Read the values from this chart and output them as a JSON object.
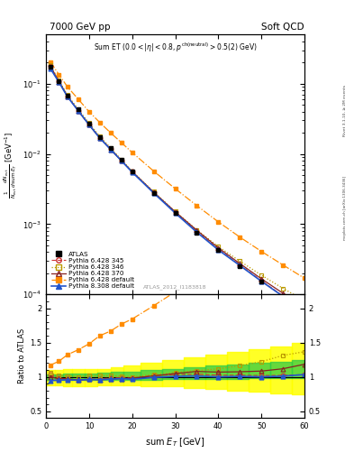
{
  "title_left": "7000 GeV pp",
  "title_right": "Soft QCD",
  "watermark": "ATLAS_2012_I1183818",
  "right_label": "mcplots.cern.ch [arXiv:1306.3436]",
  "right_label2": "Rivet 3.1.10, ≥ 2M events",
  "atlas_x": [
    1,
    3,
    5,
    7.5,
    10,
    12.5,
    15,
    17.5,
    20,
    25,
    30,
    35,
    40,
    45,
    50,
    55,
    60
  ],
  "atlas_y": [
    0.175,
    0.11,
    0.068,
    0.043,
    0.027,
    0.0175,
    0.012,
    0.0082,
    0.0057,
    0.0028,
    0.00143,
    0.00076,
    0.00043,
    0.000256,
    0.000154,
    9.3e-05,
    6e-05
  ],
  "p345_x": [
    1,
    3,
    5,
    7.5,
    10,
    12.5,
    15,
    17.5,
    20,
    25,
    30,
    35,
    40,
    45,
    50,
    55,
    60
  ],
  "p345_y": [
    0.18,
    0.108,
    0.066,
    0.041,
    0.026,
    0.017,
    0.0118,
    0.0081,
    0.0056,
    0.00285,
    0.00148,
    0.00079,
    0.00044,
    0.000262,
    0.000157,
    9.5e-05,
    6.2e-05
  ],
  "p346_x": [
    1,
    3,
    5,
    7.5,
    10,
    12.5,
    15,
    17.5,
    20,
    25,
    30,
    35,
    40,
    45,
    50,
    55,
    60
  ],
  "p346_y": [
    0.185,
    0.112,
    0.069,
    0.043,
    0.0275,
    0.0178,
    0.0122,
    0.0083,
    0.0057,
    0.0029,
    0.00152,
    0.00083,
    0.00048,
    0.000298,
    0.000188,
    0.000122,
    8.2e-05
  ],
  "p370_x": [
    1,
    3,
    5,
    7.5,
    10,
    12.5,
    15,
    17.5,
    20,
    25,
    30,
    35,
    40,
    45,
    50,
    55,
    60
  ],
  "p370_y": [
    0.175,
    0.107,
    0.066,
    0.041,
    0.026,
    0.0168,
    0.0116,
    0.008,
    0.0056,
    0.00284,
    0.0015,
    0.00082,
    0.00046,
    0.000275,
    0.000167,
    0.000104,
    7.1e-05
  ],
  "pdef_x": [
    1,
    3,
    5,
    7.5,
    10,
    12.5,
    15,
    17.5,
    20,
    25,
    30,
    35,
    40,
    45,
    50,
    55,
    60
  ],
  "pdef_y": [
    0.205,
    0.135,
    0.09,
    0.06,
    0.04,
    0.028,
    0.02,
    0.0145,
    0.0105,
    0.0057,
    0.0032,
    0.00184,
    0.00108,
    0.000655,
    0.00041,
    0.000263,
    0.00017
  ],
  "p8def_x": [
    1,
    3,
    5,
    7.5,
    10,
    12.5,
    15,
    17.5,
    20,
    25,
    30,
    35,
    40,
    45,
    50,
    55,
    60
  ],
  "p8def_y": [
    0.165,
    0.105,
    0.065,
    0.041,
    0.026,
    0.0168,
    0.0116,
    0.008,
    0.0055,
    0.00278,
    0.00144,
    0.00077,
    0.00043,
    0.000258,
    0.000154,
    9.4e-05,
    6.2e-05
  ],
  "band_x_edges": [
    0,
    2,
    4,
    6,
    9,
    12,
    15,
    18,
    22,
    27,
    32,
    37,
    42,
    47,
    52,
    57,
    60
  ],
  "band_green_lo": [
    0.96,
    0.96,
    0.95,
    0.95,
    0.95,
    0.96,
    0.96,
    0.96,
    0.96,
    0.97,
    0.97,
    0.97,
    0.97,
    0.98,
    0.98,
    0.98
  ],
  "band_green_hi": [
    1.04,
    1.04,
    1.05,
    1.05,
    1.05,
    1.06,
    1.07,
    1.08,
    1.1,
    1.12,
    1.14,
    1.16,
    1.18,
    1.2,
    1.22,
    1.24
  ],
  "band_yellow_lo": [
    0.88,
    0.88,
    0.87,
    0.87,
    0.87,
    0.88,
    0.88,
    0.88,
    0.87,
    0.87,
    0.84,
    0.82,
    0.8,
    0.78,
    0.76,
    0.74
  ],
  "band_yellow_hi": [
    1.1,
    1.1,
    1.11,
    1.11,
    1.11,
    1.12,
    1.14,
    1.16,
    1.2,
    1.25,
    1.28,
    1.32,
    1.36,
    1.4,
    1.44,
    1.5
  ],
  "color_atlas": "#000000",
  "color_p345": "#cc3333",
  "color_p346": "#bb9900",
  "color_p370": "#882222",
  "color_pdef": "#ff8c00",
  "color_p8def": "#2255cc",
  "ylim_main": [
    0.0001,
    0.5
  ],
  "ylim_ratio": [
    0.4,
    2.2
  ],
  "xlim": [
    0,
    60
  ]
}
